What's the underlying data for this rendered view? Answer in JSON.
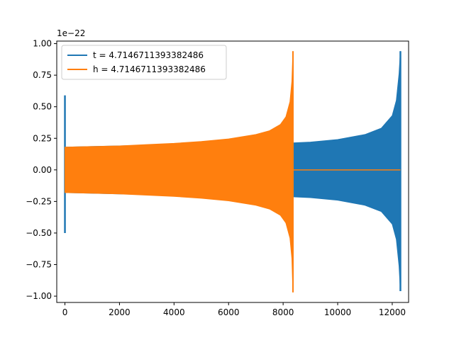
{
  "chart_data": {
    "type": "line",
    "offset_text": "1e−22",
    "xlim": [
      -300,
      12600
    ],
    "ylim": [
      -1.05,
      1.02
    ],
    "x_ticks": [
      0,
      2000,
      4000,
      6000,
      8000,
      10000,
      12000
    ],
    "x_tick_labels": [
      "0",
      "2000",
      "4000",
      "6000",
      "8000",
      "10000",
      "12000"
    ],
    "y_ticks": [
      -1.0,
      -0.75,
      -0.5,
      -0.25,
      0.0,
      0.25,
      0.5,
      0.75,
      1.0
    ],
    "y_tick_labels": [
      "−1.00",
      "−0.75",
      "−0.50",
      "−0.25",
      "0.00",
      "0.25",
      "0.50",
      "0.75",
      "1.00"
    ],
    "grid": false,
    "legend_position": "top-left",
    "series": [
      {
        "name": "t = 4.7146711393382486",
        "color": "#1f77b4",
        "spike_x": 0,
        "spike_range": [
          -0.5,
          0.59
        ],
        "envelope": {
          "x": [
            0,
            2000,
            4000,
            6000,
            8000,
            9000,
            10000,
            11000,
            11600,
            12000,
            12150,
            12250,
            12300
          ],
          "upper": [
            0.18,
            0.19,
            0.2,
            0.205,
            0.21,
            0.22,
            0.24,
            0.28,
            0.33,
            0.43,
            0.55,
            0.76,
            0.94
          ],
          "lower": [
            -0.18,
            -0.19,
            -0.2,
            -0.205,
            -0.21,
            -0.22,
            -0.24,
            -0.28,
            -0.33,
            -0.43,
            -0.55,
            -0.76,
            -0.96
          ]
        },
        "end_x": 12300
      },
      {
        "name": "h = 4.7146711393382486",
        "color": "#ff7f0e",
        "spike_x": 0,
        "envelope": {
          "x": [
            0,
            1000,
            2000,
            3000,
            4000,
            5000,
            6000,
            7000,
            7500,
            7900,
            8100,
            8250,
            8320,
            8360
          ],
          "upper": [
            0.18,
            0.185,
            0.19,
            0.2,
            0.21,
            0.225,
            0.245,
            0.28,
            0.31,
            0.36,
            0.42,
            0.54,
            0.7,
            0.94
          ],
          "lower": [
            -0.18,
            -0.185,
            -0.19,
            -0.2,
            -0.21,
            -0.225,
            -0.245,
            -0.28,
            -0.31,
            -0.36,
            -0.42,
            -0.54,
            -0.7,
            -0.97
          ]
        },
        "flat_after": [
          8360,
          12300
        ],
        "flat_value": 0.0
      }
    ]
  }
}
